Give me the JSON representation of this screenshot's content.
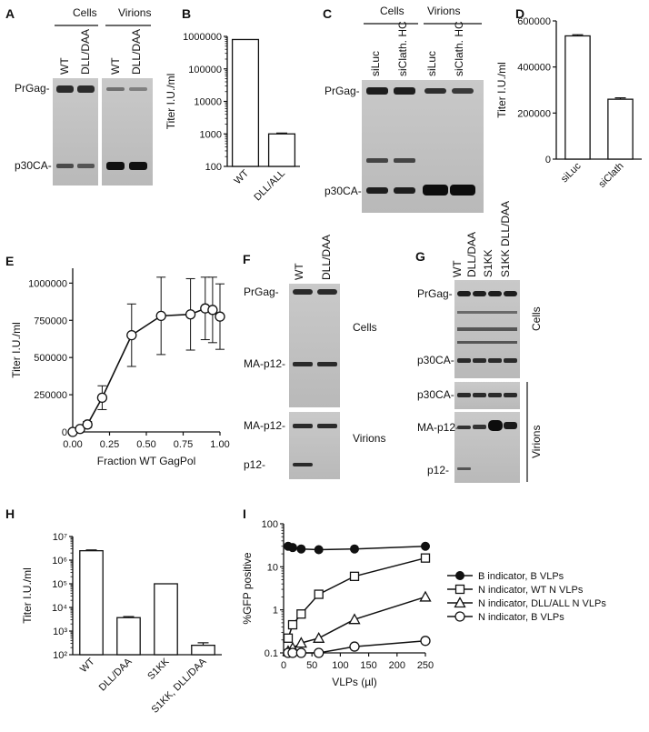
{
  "panels": {
    "A": {
      "letter": "A",
      "groups": [
        "Cells",
        "Virions"
      ],
      "lanes": [
        "WT",
        "DLL/DAA",
        "WT",
        "DLL/DAA"
      ],
      "rows": [
        "PrGag-",
        "p30CA-"
      ]
    },
    "C": {
      "letter": "C",
      "groups": [
        "Cells",
        "Virions"
      ],
      "lanes": [
        "siLuc",
        "siClath. HC",
        "siLuc",
        "siClath. HC"
      ],
      "rows": [
        "PrGag-",
        "p30CA-"
      ]
    },
    "F": {
      "letter": "F",
      "lanes": [
        "WT",
        "DLL/DAA"
      ],
      "rows": [
        "PrGag-",
        "MA-p12-",
        "MA-p12-",
        "p12-"
      ],
      "side": [
        "Cells",
        "Virions"
      ]
    },
    "G": {
      "letter": "G",
      "lanes": [
        "WT",
        "DLL/DAA",
        "S1KK",
        "S1KK DLL/DAA"
      ],
      "rows": [
        "PrGag-",
        "p30CA-",
        "p30CA-",
        "MA-p12-",
        "p12-"
      ],
      "side": [
        "Cells",
        "Virions"
      ]
    }
  },
  "chart_data": [
    {
      "panel": "B",
      "type": "bar",
      "categories": [
        "WT",
        "DLL/ALL"
      ],
      "values": [
        800000,
        1000
      ],
      "errors": [
        0,
        60
      ],
      "ylabel": "Titer I.U./ml",
      "yscale": "log",
      "ylim": [
        100,
        1000000
      ],
      "yticks": [
        "100",
        "1000",
        "10000",
        "100000",
        "1000000"
      ]
    },
    {
      "panel": "D",
      "type": "bar",
      "categories": [
        "siLuc",
        "siClath"
      ],
      "values": [
        535000,
        260000
      ],
      "errors": [
        5000,
        6000
      ],
      "ylabel": "Titer I.U./ml",
      "ylim": [
        0,
        600000
      ],
      "yticks": [
        "0",
        "200000",
        "400000",
        "600000"
      ]
    },
    {
      "panel": "E",
      "type": "line",
      "x": [
        0,
        0.05,
        0.1,
        0.2,
        0.4,
        0.6,
        0.8,
        0.9,
        0.95,
        1.0
      ],
      "y": [
        0,
        20000,
        50000,
        230000,
        650000,
        780000,
        790000,
        830000,
        820000,
        775000
      ],
      "err": [
        0,
        10000,
        20000,
        80000,
        210000,
        260000,
        240000,
        210000,
        220000,
        220000
      ],
      "xlabel": "Fraction WT GagPol",
      "ylabel": "Titer I.U./ml",
      "xlim": [
        0,
        1
      ],
      "ylim": [
        0,
        1100000
      ],
      "xticks": [
        "0.00",
        "0.25",
        "0.50",
        "0.75",
        "1.00"
      ],
      "yticks": [
        "0",
        "250000",
        "500000",
        "750000",
        "1000000"
      ]
    },
    {
      "panel": "H",
      "type": "bar",
      "categories": [
        "WT",
        "DLL/DAA",
        "S1KK",
        "S1KK, DLL/DAA"
      ],
      "values": [
        2500000,
        3700,
        100000,
        250
      ],
      "errors": [
        200000,
        400,
        0,
        70
      ],
      "ylabel": "Titer I.U./ml",
      "yscale": "log",
      "ylim": [
        100,
        10000000
      ],
      "yticks": [
        "10²",
        "10³",
        "10⁴",
        "10⁵",
        "10⁶",
        "10⁷"
      ]
    },
    {
      "panel": "I",
      "type": "line",
      "xlabel": "VLPs (µl)",
      "ylabel": "%GFP positive",
      "yscale": "log",
      "xlim": [
        0,
        250
      ],
      "ylim": [
        0.1,
        100
      ],
      "xticks": [
        "0",
        "50",
        "100",
        "150",
        "200",
        "250"
      ],
      "yticks": [
        "0.1",
        "1",
        "10",
        "100"
      ],
      "legend_position": "right",
      "x": [
        8,
        16,
        31,
        62,
        125,
        250
      ],
      "series": [
        {
          "name": "B indicator, B VLPs",
          "marker": "filled-circle",
          "values": [
            30,
            28,
            26,
            25,
            26,
            30
          ]
        },
        {
          "name": "N indicator, WT N VLPs",
          "marker": "open-square",
          "values": [
            0.22,
            0.45,
            0.8,
            2.3,
            6,
            16
          ]
        },
        {
          "name": "N indicator, DLL/ALL N VLPs",
          "marker": "open-triangle",
          "values": [
            0.11,
            0.13,
            0.17,
            0.22,
            0.6,
            2.0
          ]
        },
        {
          "name": "N indicator, B VLPs",
          "marker": "open-circle",
          "values": [
            0.1,
            0.1,
            0.1,
            0.1,
            0.14,
            0.19
          ]
        }
      ]
    }
  ]
}
